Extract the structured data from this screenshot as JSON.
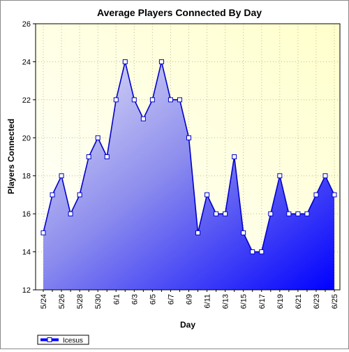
{
  "chart_data": {
    "type": "area",
    "title": "Average Players Connected By Day",
    "xlabel": "Day",
    "ylabel": "Players Connected",
    "ylim": [
      12,
      26
    ],
    "yticks": [
      12,
      14,
      16,
      18,
      20,
      22,
      24,
      26
    ],
    "x": [
      "5/24",
      "5/25",
      "5/26",
      "5/27",
      "5/28",
      "5/29",
      "5/30",
      "5/31",
      "6/1",
      "6/2",
      "6/3",
      "6/4",
      "6/5",
      "6/6",
      "6/7",
      "6/8",
      "6/9",
      "6/10",
      "6/11",
      "6/12",
      "6/13",
      "6/14",
      "6/15",
      "6/16",
      "6/17",
      "6/18",
      "6/19",
      "6/20",
      "6/21",
      "6/22",
      "6/23",
      "6/24",
      "6/25"
    ],
    "xticks": [
      "5/24",
      "5/26",
      "5/28",
      "5/30",
      "6/1",
      "6/3",
      "6/5",
      "6/7",
      "6/9",
      "6/11",
      "6/13",
      "6/15",
      "6/17",
      "6/19",
      "6/21",
      "6/23",
      "6/25"
    ],
    "series": [
      {
        "name": "Icesus",
        "values": [
          15,
          17,
          18,
          16,
          17,
          19,
          20,
          19,
          22,
          24,
          22,
          21,
          22,
          24,
          22,
          22,
          20,
          15,
          17,
          16,
          16,
          19,
          15,
          14,
          14,
          16,
          18,
          16,
          16,
          16,
          17,
          18,
          17
        ]
      }
    ],
    "grid": true,
    "legend": "bottom-left",
    "colors": {
      "line": "#0000cc",
      "fill_light": "#d8d8f4",
      "fill_dark": "#0000ff",
      "plot_bg_light": "#ffffff",
      "plot_bg_dark": "#ffffcc",
      "grid": "#bdbd9a"
    }
  }
}
